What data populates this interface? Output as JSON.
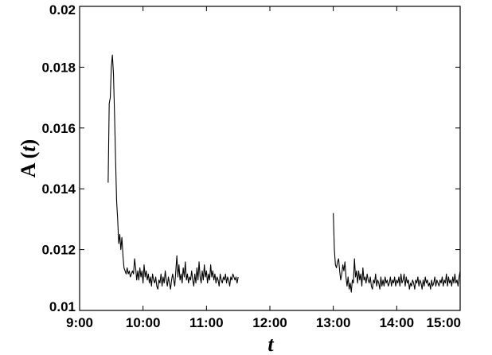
{
  "chart_data": {
    "type": "line",
    "xlabel": "t",
    "ylabel": {
      "prefix": "A (",
      "var": "t",
      "suffix": ")"
    },
    "xlim": [
      "9:00",
      "15:00"
    ],
    "ylim": [
      0.01,
      0.02
    ],
    "xticks": [
      "9:00",
      "10:00",
      "11:00",
      "12:00",
      "13:00",
      "14:00",
      "15:00"
    ],
    "yticks": [
      "0.01",
      "0.012",
      "0.014",
      "0.016",
      "0.018",
      "0.02"
    ],
    "grid": false,
    "line_color": "#000000",
    "series": [
      {
        "x": [
          "9:27",
          "9:28",
          "9:29",
          "9:30",
          "9:31",
          "9:32",
          "9:33",
          "9:34",
          "9:35",
          "9:36",
          "9:37",
          "9:38",
          "9:39",
          "9:40",
          "9:41",
          "9:42",
          "9:43",
          "9:44",
          "9:45",
          "9:46",
          "9:47",
          "9:48",
          "9:49",
          "9:50",
          "9:51",
          "9:52",
          "9:53",
          "9:54",
          "9:55",
          "9:56",
          "9:57",
          "9:58",
          "9:59",
          "10:00",
          "10:01",
          "10:02",
          "10:03",
          "10:04",
          "10:05",
          "10:06",
          "10:07",
          "10:08",
          "10:09",
          "10:10",
          "10:11",
          "10:12",
          "10:13",
          "10:14",
          "10:15",
          "10:16",
          "10:17",
          "10:18",
          "10:19",
          "10:20",
          "10:21",
          "10:22",
          "10:23",
          "10:24",
          "10:25",
          "10:26",
          "10:27",
          "10:28",
          "10:29",
          "10:30",
          "10:31",
          "10:32",
          "10:33",
          "10:34",
          "10:35",
          "10:36",
          "10:37",
          "10:38",
          "10:39",
          "10:40",
          "10:41",
          "10:42",
          "10:43",
          "10:44",
          "10:45",
          "10:46",
          "10:47",
          "10:48",
          "10:49",
          "10:50",
          "10:51",
          "10:52",
          "10:53",
          "10:54",
          "10:55",
          "10:56",
          "10:57",
          "10:58",
          "10:59",
          "11:00",
          "11:01",
          "11:02",
          "11:03",
          "11:04",
          "11:05",
          "11:06",
          "11:07",
          "11:08",
          "11:09",
          "11:10",
          "11:11",
          "11:12",
          "11:13",
          "11:14",
          "11:15",
          "11:16",
          "11:17",
          "11:18",
          "11:19",
          "11:20",
          "11:21",
          "11:22",
          "11:23",
          "11:24",
          "11:25",
          "11:26",
          "11:27",
          "11:28",
          "11:29",
          "11:30"
        ],
        "y": [
          0.0142,
          0.0168,
          0.017,
          0.018,
          0.0184,
          0.0178,
          0.0165,
          0.015,
          0.0136,
          0.013,
          0.0122,
          0.0125,
          0.012,
          0.0124,
          0.0118,
          0.0114,
          0.0113,
          0.0112,
          0.0114,
          0.0112,
          0.0113,
          0.0111,
          0.0112,
          0.0113,
          0.0112,
          0.0117,
          0.0114,
          0.011,
          0.0113,
          0.011,
          0.0114,
          0.0111,
          0.0113,
          0.0109,
          0.0115,
          0.0111,
          0.0113,
          0.011,
          0.0112,
          0.0109,
          0.0111,
          0.0108,
          0.0112,
          0.011,
          0.0109,
          0.0111,
          0.0108,
          0.0107,
          0.011,
          0.0109,
          0.0112,
          0.0108,
          0.0111,
          0.0109,
          0.0113,
          0.011,
          0.0108,
          0.0111,
          0.0109,
          0.0107,
          0.011,
          0.0112,
          0.011,
          0.0108,
          0.0113,
          0.0118,
          0.0111,
          0.0115,
          0.011,
          0.0112,
          0.0109,
          0.0114,
          0.0111,
          0.0116,
          0.011,
          0.0112,
          0.0109,
          0.0111,
          0.011,
          0.0113,
          0.011,
          0.0108,
          0.0112,
          0.0109,
          0.0114,
          0.011,
          0.0116,
          0.0111,
          0.0109,
          0.0113,
          0.011,
          0.0115,
          0.0111,
          0.0113,
          0.0109,
          0.0112,
          0.011,
          0.0115,
          0.0111,
          0.0113,
          0.011,
          0.0112,
          0.0109,
          0.0111,
          0.011,
          0.0108,
          0.0112,
          0.011,
          0.0109,
          0.0111,
          0.011,
          0.0112,
          0.0109,
          0.0111,
          0.011,
          0.0108,
          0.0111,
          0.011,
          0.0112,
          0.0111,
          0.011,
          0.0111,
          0.0109,
          0.0111
        ]
      },
      {
        "x": [
          "13:00",
          "13:01",
          "13:02",
          "13:03",
          "13:04",
          "13:05",
          "13:06",
          "13:07",
          "13:08",
          "13:09",
          "13:10",
          "13:11",
          "13:12",
          "13:13",
          "13:14",
          "13:15",
          "13:16",
          "13:17",
          "13:18",
          "13:19",
          "13:20",
          "13:21",
          "13:22",
          "13:23",
          "13:24",
          "13:25",
          "13:26",
          "13:27",
          "13:28",
          "13:29",
          "13:30",
          "13:31",
          "13:32",
          "13:33",
          "13:34",
          "13:35",
          "13:36",
          "13:37",
          "13:38",
          "13:39",
          "13:40",
          "13:41",
          "13:42",
          "13:43",
          "13:44",
          "13:45",
          "13:46",
          "13:47",
          "13:48",
          "13:49",
          "13:50",
          "13:51",
          "13:52",
          "13:53",
          "13:54",
          "13:55",
          "13:56",
          "13:57",
          "13:58",
          "13:59",
          "14:00",
          "14:01",
          "14:02",
          "14:03",
          "14:04",
          "14:05",
          "14:06",
          "14:07",
          "14:08",
          "14:09",
          "14:10",
          "14:11",
          "14:12",
          "14:13",
          "14:14",
          "14:15",
          "14:16",
          "14:17",
          "14:18",
          "14:19",
          "14:20",
          "14:21",
          "14:22",
          "14:23",
          "14:24",
          "14:25",
          "14:26",
          "14:27",
          "14:28",
          "14:29",
          "14:30",
          "14:31",
          "14:32",
          "14:33",
          "14:34",
          "14:35",
          "14:36",
          "14:37",
          "14:38",
          "14:39",
          "14:40",
          "14:41",
          "14:42",
          "14:43",
          "14:44",
          "14:45",
          "14:46",
          "14:47",
          "14:48",
          "14:49",
          "14:50",
          "14:51",
          "14:52",
          "14:53",
          "14:54",
          "14:55",
          "14:56",
          "14:57",
          "14:58",
          "14:59",
          "15:00"
        ],
        "y": [
          0.0132,
          0.012,
          0.0115,
          0.0114,
          0.0116,
          0.0117,
          0.0113,
          0.011,
          0.0112,
          0.0115,
          0.0113,
          0.0116,
          0.0111,
          0.0108,
          0.0111,
          0.0107,
          0.0109,
          0.0106,
          0.011,
          0.0109,
          0.0117,
          0.0111,
          0.0113,
          0.0109,
          0.0113,
          0.011,
          0.0112,
          0.0108,
          0.0114,
          0.011,
          0.0111,
          0.0109,
          0.0112,
          0.011,
          0.0109,
          0.0111,
          0.0108,
          0.0107,
          0.011,
          0.0109,
          0.0112,
          0.0108,
          0.011,
          0.0109,
          0.0107,
          0.0111,
          0.0108,
          0.011,
          0.0108,
          0.0111,
          0.0109,
          0.011,
          0.0108,
          0.0109,
          0.0111,
          0.0108,
          0.011,
          0.0109,
          0.0111,
          0.0108,
          0.011,
          0.0109,
          0.0111,
          0.0108,
          0.0112,
          0.0109,
          0.011,
          0.0112,
          0.0108,
          0.0111,
          0.0109,
          0.011,
          0.0107,
          0.0109,
          0.0108,
          0.011,
          0.0109,
          0.0107,
          0.011,
          0.0109,
          0.0111,
          0.0108,
          0.011,
          0.0109,
          0.0107,
          0.011,
          0.0108,
          0.0111,
          0.0109,
          0.011,
          0.0108,
          0.0109,
          0.0107,
          0.011,
          0.0108,
          0.0109,
          0.0111,
          0.0108,
          0.011,
          0.0109,
          0.0108,
          0.011,
          0.0109,
          0.0111,
          0.0108,
          0.011,
          0.0109,
          0.0112,
          0.0108,
          0.0111,
          0.0109,
          0.011,
          0.0108,
          0.0111,
          0.0109,
          0.0112,
          0.0109,
          0.011,
          0.0108,
          0.0111,
          0.0113
        ]
      }
    ]
  }
}
